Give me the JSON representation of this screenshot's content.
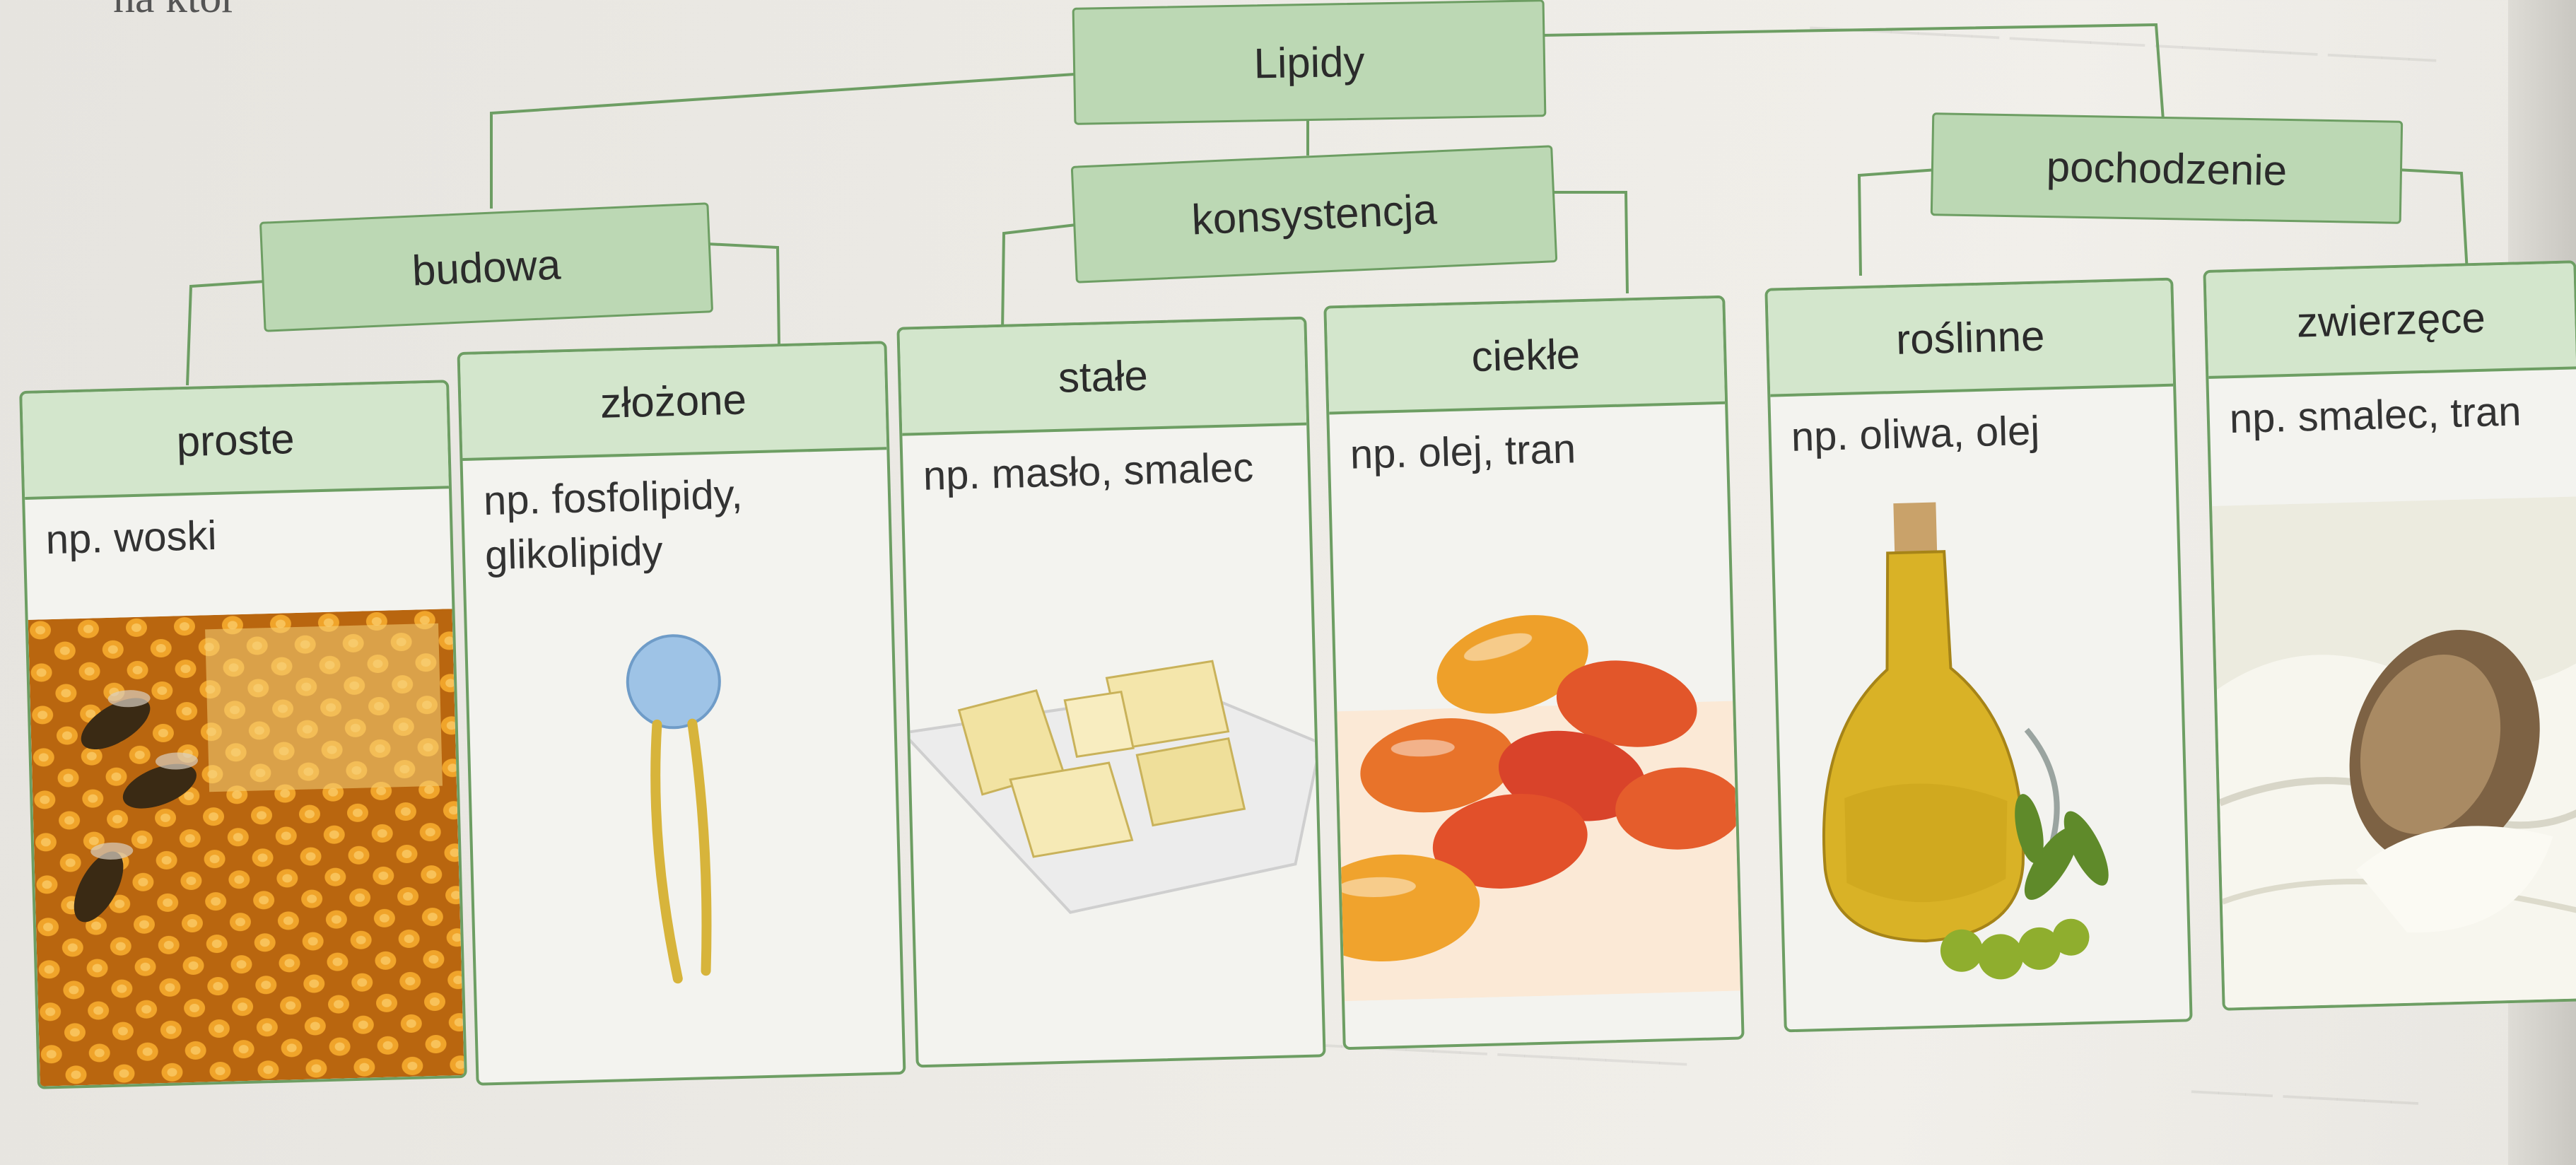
{
  "diagram": {
    "root": "Lipidy",
    "groups": [
      {
        "label": "budowa",
        "items": [
          {
            "title": "proste",
            "example": "np. woski",
            "image": "honeycomb-with-bees"
          },
          {
            "title": "złożone",
            "example": "np. fosfolipidy, glikolipidy",
            "image": "phospholipid-model"
          }
        ]
      },
      {
        "label": "konsystencja",
        "items": [
          {
            "title": "stałe",
            "example": "np. masło, smalec",
            "image": "butter-cubes-on-plate"
          },
          {
            "title": "ciekłe",
            "example": "np. olej, tran",
            "image": "fish-oil-capsules"
          }
        ]
      },
      {
        "label": "pochodzenie",
        "items": [
          {
            "title": "roślinne",
            "example": "np. oliwa, olej",
            "image": "olive-oil-bottle"
          },
          {
            "title": "zwierzęce",
            "example": "np. smalec, tran",
            "image": "lard-with-spoon"
          }
        ]
      }
    ],
    "page_fragment": "na któr"
  },
  "colors": {
    "header_green": "#bcd8b4",
    "card_head_green": "#d3e6cc",
    "border_green": "#6d9e63"
  }
}
